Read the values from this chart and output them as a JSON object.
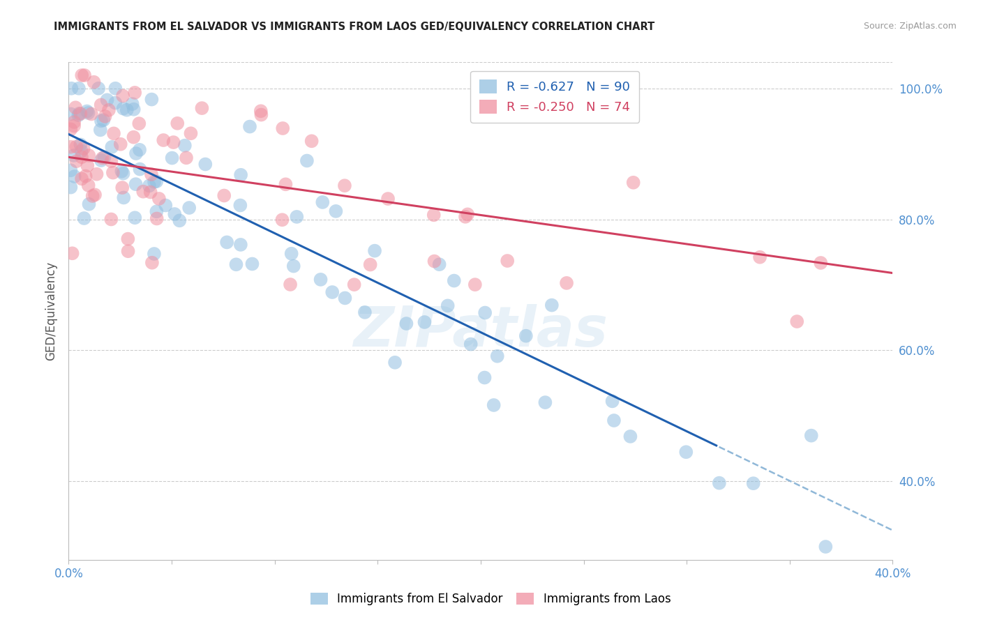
{
  "title": "IMMIGRANTS FROM EL SALVADOR VS IMMIGRANTS FROM LAOS GED/EQUIVALENCY CORRELATION CHART",
  "source": "Source: ZipAtlas.com",
  "ylabel": "GED/Equivalency",
  "xlim": [
    0.0,
    0.4
  ],
  "ylim": [
    0.28,
    1.04
  ],
  "ytick_vals": [
    0.4,
    0.6,
    0.8,
    1.0
  ],
  "ytick_labels": [
    "40.0%",
    "60.0%",
    "80.0%",
    "100.0%"
  ],
  "grid_color": "#cccccc",
  "series1_color": "#92bfe0",
  "series2_color": "#f090a0",
  "line1_color": "#2060b0",
  "line2_color": "#d04060",
  "line1_dashed_color": "#90b8d8",
  "watermark": "ZIPatlas",
  "series1_label": "Immigrants from El Salvador",
  "series2_label": "Immigrants from Laos",
  "legend_R1_val": "-0.627",
  "legend_N1_val": "90",
  "legend_R2_val": "-0.250",
  "legend_N2_val": "74",
  "line1_x0": 0.0,
  "line1_y0": 0.93,
  "line1_x1": 0.4,
  "line1_y1": 0.325,
  "line1_solid_end": 0.315,
  "line2_x0": 0.0,
  "line2_y0": 0.895,
  "line2_x1": 0.4,
  "line2_y1": 0.718,
  "axis_color": "#5090d0",
  "tick_color": "#aaaaaa"
}
